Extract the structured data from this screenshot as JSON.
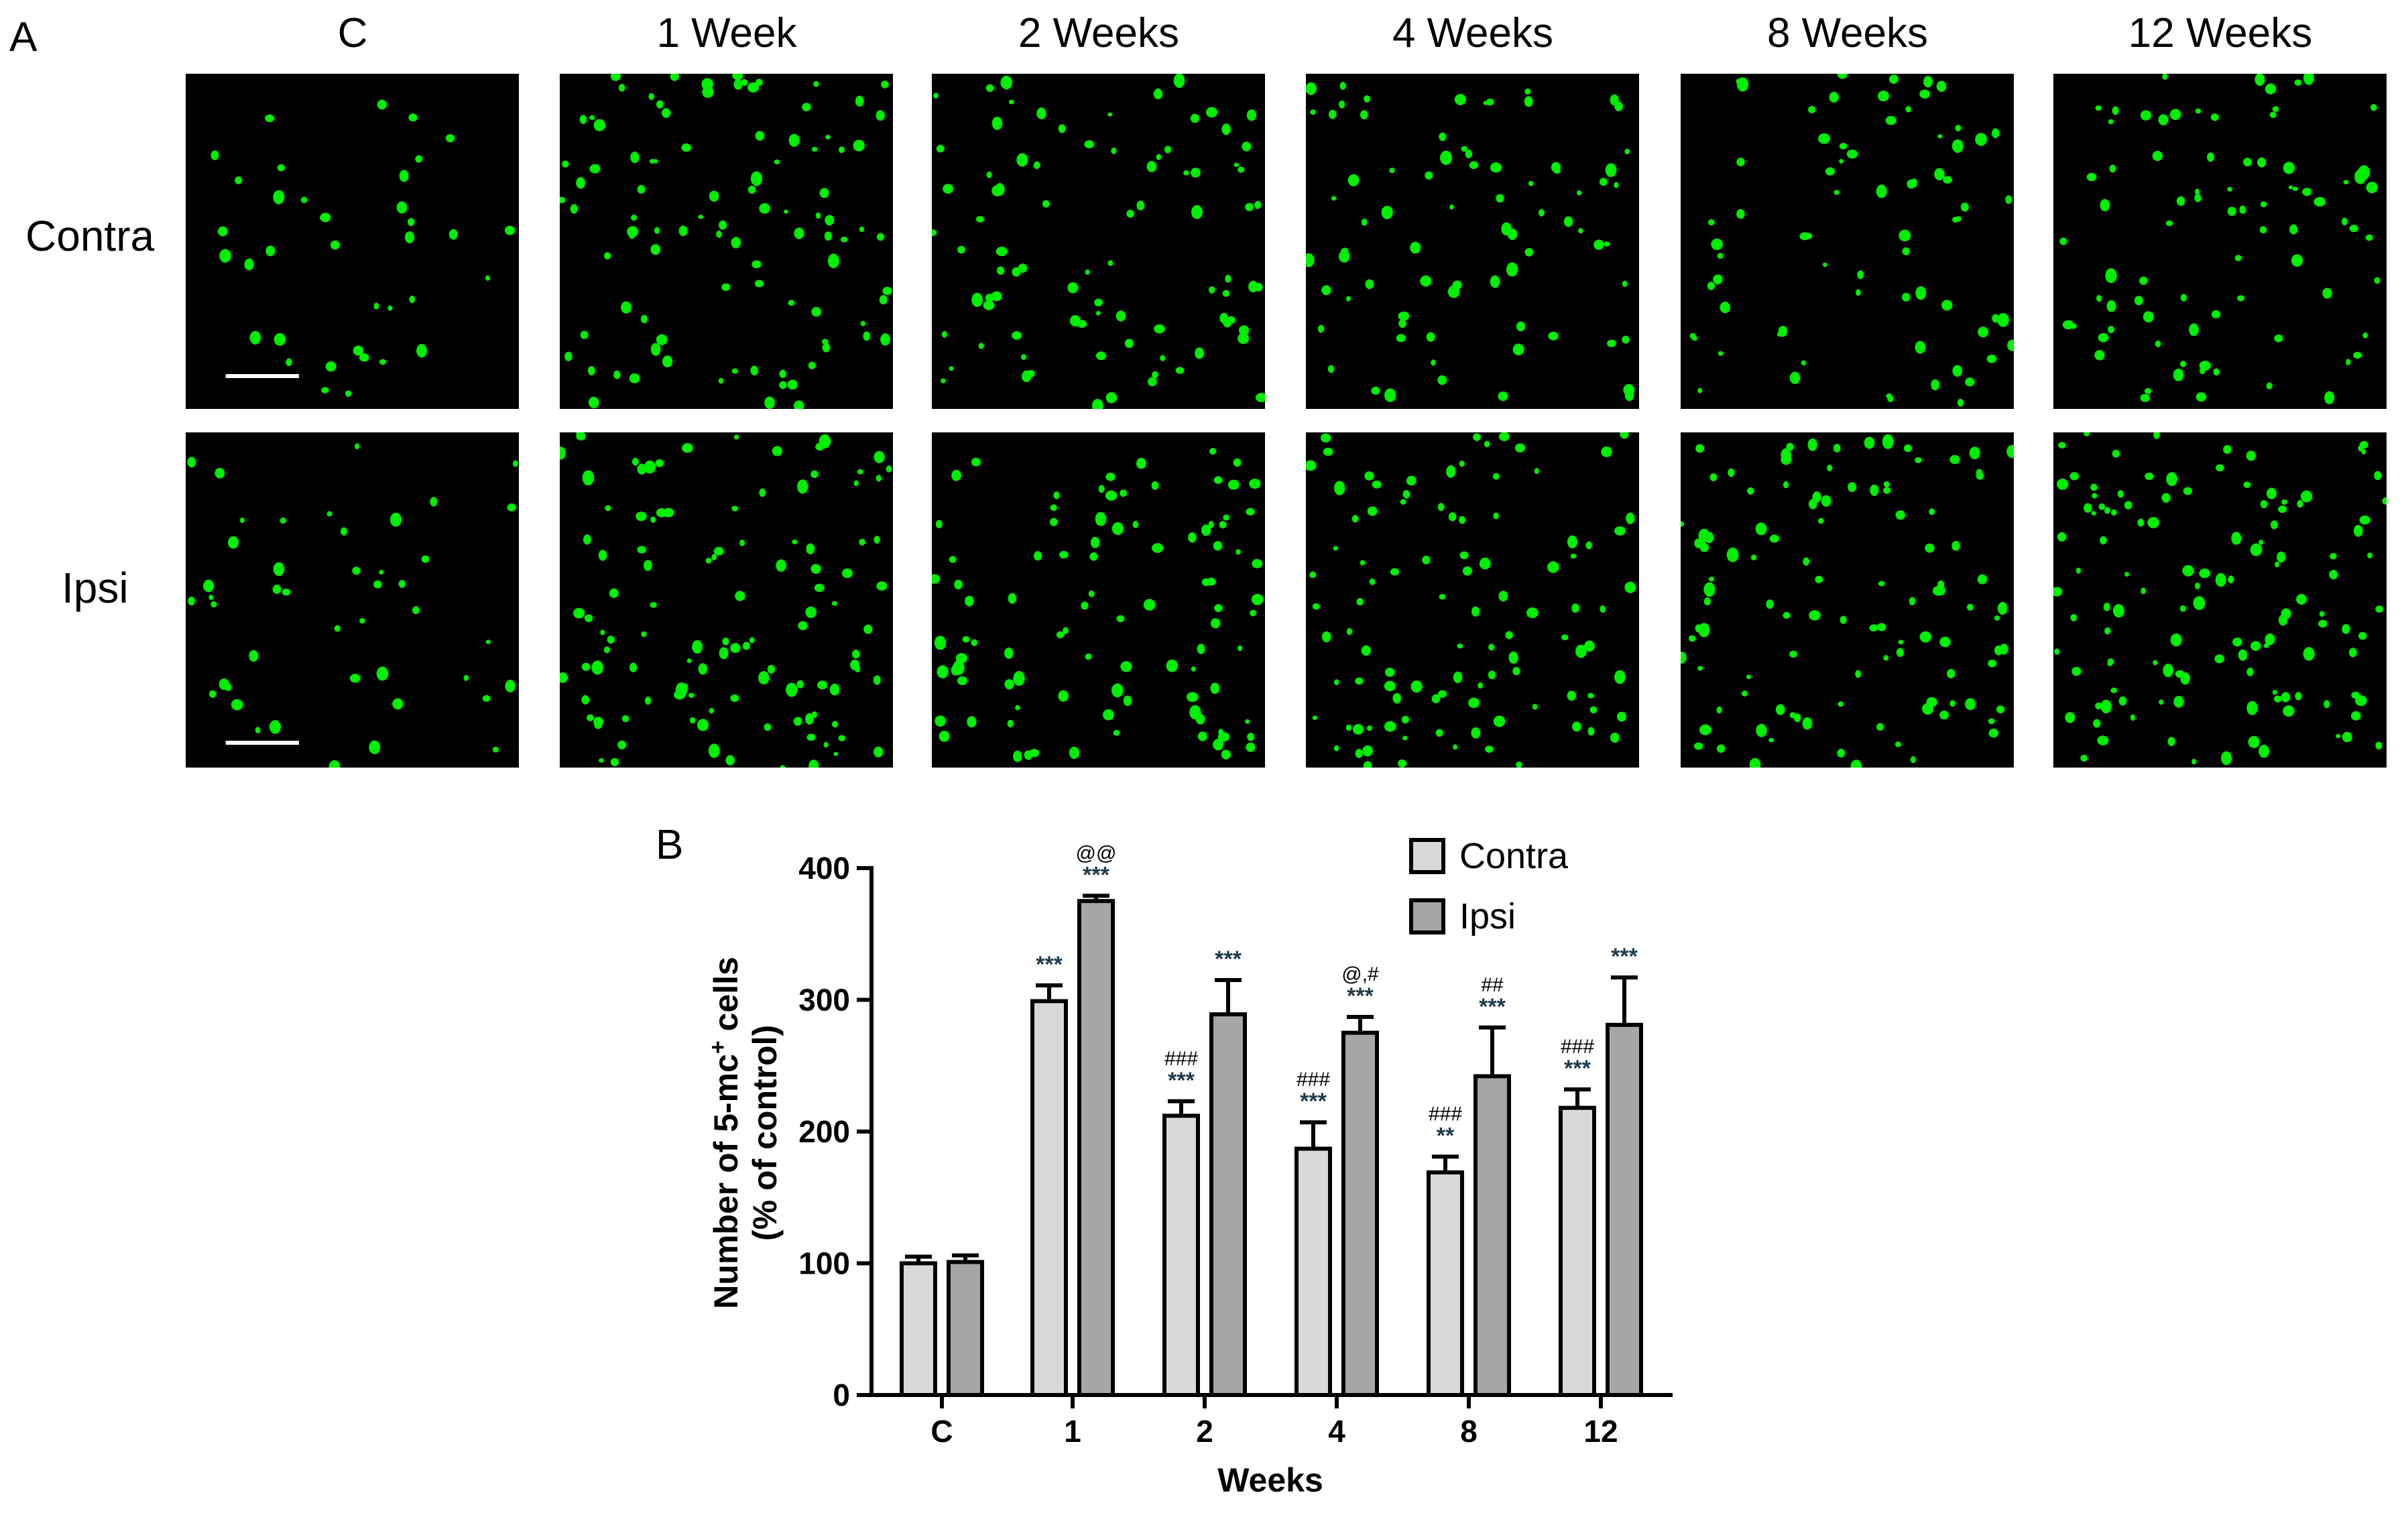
{
  "panel_a": {
    "letter": "A",
    "columns": [
      "C",
      "1 Week",
      "2 Weeks",
      "4 Weeks",
      "8 Weeks",
      "12 Weeks"
    ],
    "rows": [
      "Contra",
      "Ipsi"
    ],
    "cell_color": "#00ee00",
    "background_color": "#000000",
    "scale_bar_color": "#ffffff"
  },
  "panel_b": {
    "letter": "B"
  },
  "chart_data": {
    "type": "bar",
    "title": "",
    "xlabel": "Weeks",
    "ylabel": "Number of 5-mc⁺ cells\n(% of control)",
    "ylabel_line1_main": "Number of 5-mc",
    "ylabel_line1_sup": "+",
    "ylabel_line1_rest": " cells",
    "ylabel_line2": "(% of control)",
    "categories": [
      "C",
      "1",
      "2",
      "4",
      "8",
      "12"
    ],
    "ylim": [
      0,
      400
    ],
    "yticks": [
      0,
      100,
      200,
      300,
      400
    ],
    "legend_position": "top-right",
    "series": [
      {
        "name": "Contra",
        "color": "#d9d9d9",
        "values": [
          100,
          299,
          212,
          187,
          169,
          218
        ],
        "errors": [
          5,
          12,
          11,
          20,
          12,
          14
        ],
        "annotations": [
          [],
          [
            "***"
          ],
          [
            "###",
            "***"
          ],
          [
            "###",
            "***"
          ],
          [
            "###",
            "**"
          ],
          [
            "###",
            "***"
          ]
        ]
      },
      {
        "name": "Ipsi",
        "color": "#a6a6a6",
        "values": [
          101,
          375,
          289,
          275,
          242,
          281
        ],
        "errors": [
          5,
          4,
          26,
          12,
          37,
          36
        ],
        "annotations": [
          [],
          [
            "@@",
            "***"
          ],
          [
            "***"
          ],
          [
            "@,#",
            "***"
          ],
          [
            "##",
            "***"
          ],
          [
            "***"
          ]
        ]
      }
    ]
  }
}
